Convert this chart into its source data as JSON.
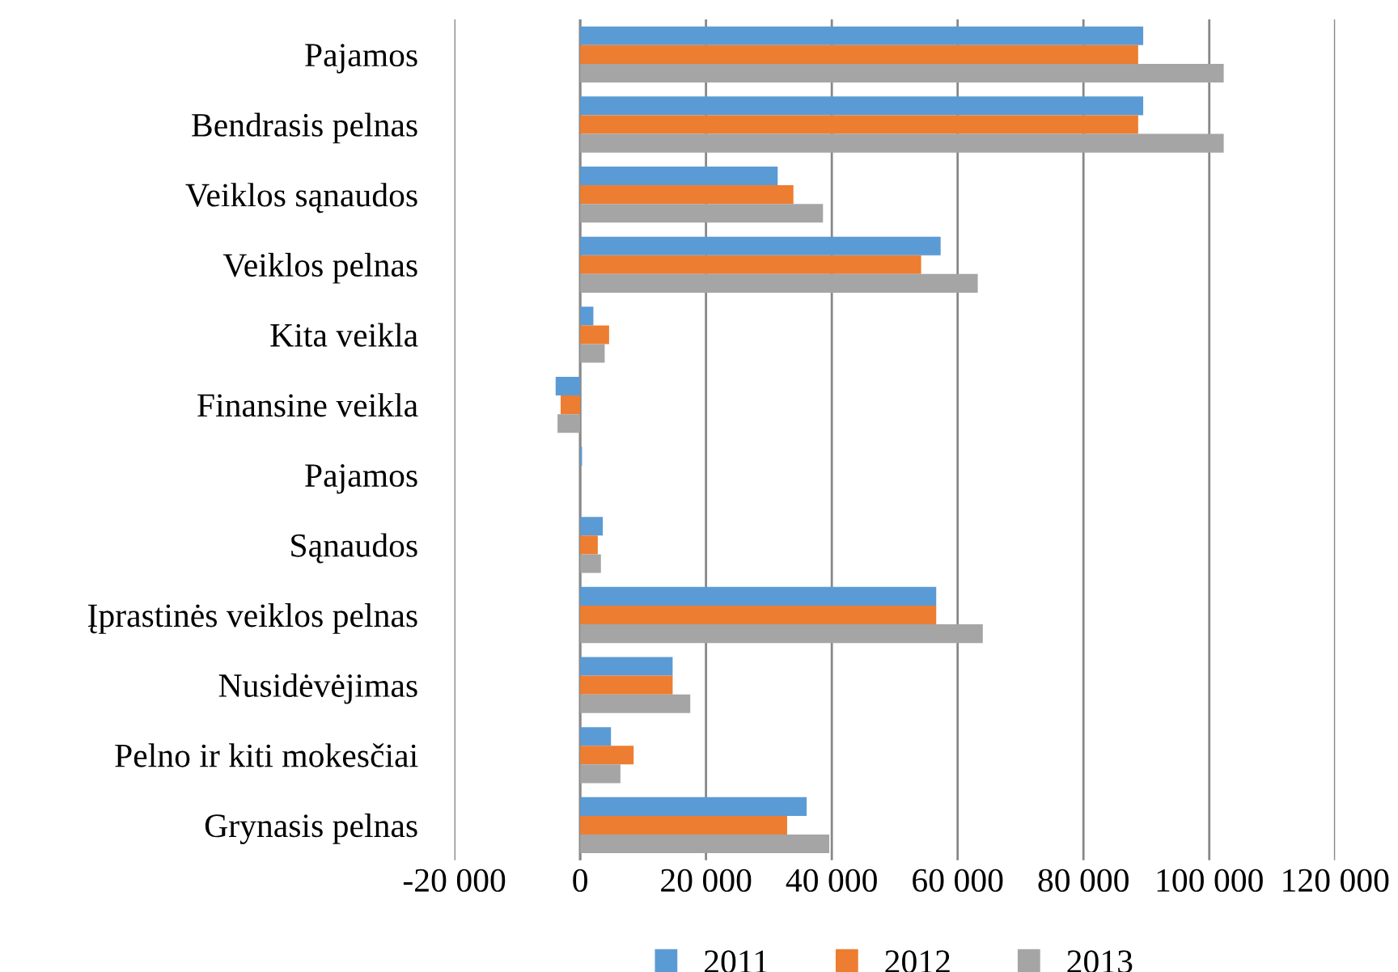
{
  "chart_data": {
    "type": "bar",
    "orientation": "horizontal",
    "categories": [
      "Pajamos",
      "Bendrasis pelnas",
      "Veiklos sąnaudos",
      "Veiklos pelnas",
      "Kita veikla",
      "Finansine veikla",
      "Pajamos",
      "Sąnaudos",
      "Įprastinės veiklos pelnas",
      "Nusidėvėjimas",
      "Pelno ir kiti mokesčiai",
      "Grynasis pelnas"
    ],
    "series": [
      {
        "name": "2011",
        "color": "#5b9bd5",
        "values": [
          89500,
          89500,
          31400,
          57300,
          2100,
          -3900,
          300,
          3600,
          56600,
          14700,
          4900,
          36000
        ]
      },
      {
        "name": "2012",
        "color": "#ed7d31",
        "values": [
          88700,
          88700,
          33900,
          54200,
          4600,
          -3100,
          0,
          2800,
          56600,
          14700,
          8500,
          32900
        ]
      },
      {
        "name": "2013",
        "color": "#a5a5a5",
        "values": [
          102300,
          102300,
          38600,
          63200,
          3900,
          -3600,
          0,
          3300,
          64000,
          17500,
          6400,
          39600
        ]
      }
    ],
    "xlim": [
      -20000,
      120000
    ],
    "xticks": [
      {
        "value": -20000,
        "label": "-20 000"
      },
      0,
      {
        "value": 20000,
        "label": "20 000"
      },
      {
        "value": 40000,
        "label": "40 000"
      },
      {
        "value": 60000,
        "label": "60 000"
      },
      {
        "value": 80000,
        "label": "80 000"
      },
      {
        "value": 100000,
        "label": "100 000"
      },
      {
        "value": 120000,
        "label": "120 000"
      }
    ],
    "grid": "x",
    "legend": "bottom"
  }
}
